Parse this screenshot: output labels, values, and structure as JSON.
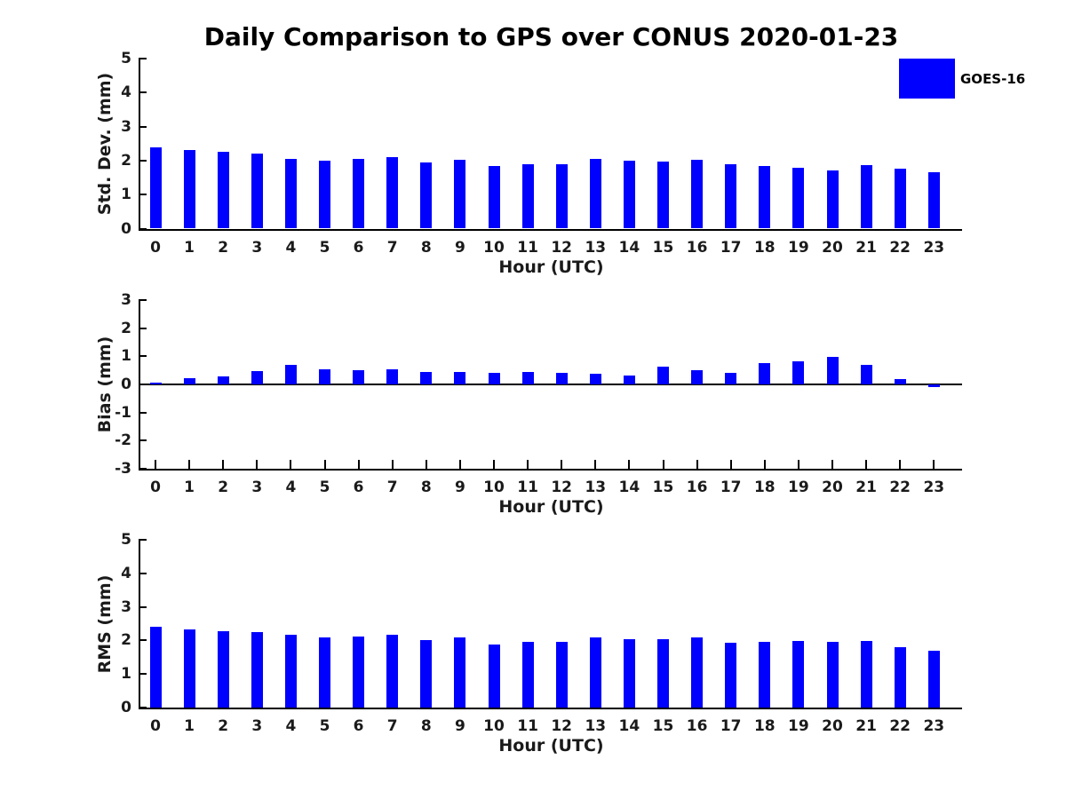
{
  "title": "Daily Comparison to GPS over CONUS 2020-01-23",
  "legend": {
    "label": "GOES-16",
    "color": "#0000FF"
  },
  "bar_color": "#0000FF",
  "hours": [
    "0",
    "1",
    "2",
    "3",
    "4",
    "5",
    "6",
    "7",
    "8",
    "9",
    "10",
    "11",
    "12",
    "13",
    "14",
    "15",
    "16",
    "17",
    "18",
    "19",
    "20",
    "21",
    "22",
    "23"
  ],
  "chart_data": [
    {
      "type": "bar",
      "name": "std-dev",
      "title": "Daily Comparison to GPS over CONUS 2020-01-23",
      "series": [
        {
          "name": "GOES-16",
          "values": [
            2.4,
            2.32,
            2.26,
            2.21,
            2.05,
            2.0,
            2.05,
            2.1,
            1.95,
            2.03,
            1.83,
            1.9,
            1.9,
            2.04,
            2.01,
            1.96,
            2.03,
            1.88,
            1.85,
            1.8,
            1.71,
            1.86,
            1.77,
            1.67
          ]
        }
      ],
      "categories": [
        "0",
        "1",
        "2",
        "3",
        "4",
        "5",
        "6",
        "7",
        "8",
        "9",
        "10",
        "11",
        "12",
        "13",
        "14",
        "15",
        "16",
        "17",
        "18",
        "19",
        "20",
        "21",
        "22",
        "23"
      ],
      "xlabel": "Hour (UTC)",
      "ylabel": "Std. Dev. (mm)",
      "ylim": [
        0,
        5
      ],
      "yticks": [
        0,
        1,
        2,
        3,
        4,
        5
      ],
      "grid": "off",
      "legend_position": "upper-right-outside"
    },
    {
      "type": "bar",
      "name": "bias",
      "series": [
        {
          "name": "GOES-16",
          "values": [
            0.07,
            0.23,
            0.3,
            0.46,
            0.7,
            0.55,
            0.49,
            0.55,
            0.45,
            0.45,
            0.42,
            0.44,
            0.42,
            0.38,
            0.31,
            0.63,
            0.52,
            0.41,
            0.77,
            0.83,
            0.97,
            0.71,
            0.2,
            -0.1
          ]
        }
      ],
      "categories": [
        "0",
        "1",
        "2",
        "3",
        "4",
        "5",
        "6",
        "7",
        "8",
        "9",
        "10",
        "11",
        "12",
        "13",
        "14",
        "15",
        "16",
        "17",
        "18",
        "19",
        "20",
        "21",
        "22",
        "23"
      ],
      "xlabel": "Hour (UTC)",
      "ylabel": "Bias (mm)",
      "ylim": [
        -3,
        3
      ],
      "yticks": [
        -3,
        -2,
        -1,
        0,
        1,
        2,
        3
      ],
      "grid": "off",
      "zero_line": true
    },
    {
      "type": "bar",
      "name": "rms",
      "series": [
        {
          "name": "GOES-16",
          "values": [
            2.4,
            2.34,
            2.28,
            2.25,
            2.17,
            2.08,
            2.11,
            2.16,
            2.0,
            2.08,
            1.88,
            1.95,
            1.95,
            2.08,
            2.04,
            2.05,
            2.1,
            1.93,
            1.97,
            1.98,
            1.96,
            1.99,
            1.8,
            1.68
          ]
        }
      ],
      "categories": [
        "0",
        "1",
        "2",
        "3",
        "4",
        "5",
        "6",
        "7",
        "8",
        "9",
        "10",
        "11",
        "12",
        "13",
        "14",
        "15",
        "16",
        "17",
        "18",
        "19",
        "20",
        "21",
        "22",
        "23"
      ],
      "xlabel": "Hour (UTC)",
      "ylabel": "RMS (mm)",
      "ylim": [
        0,
        5
      ],
      "yticks": [
        0,
        1,
        2,
        3,
        4,
        5
      ],
      "grid": "off"
    }
  ]
}
